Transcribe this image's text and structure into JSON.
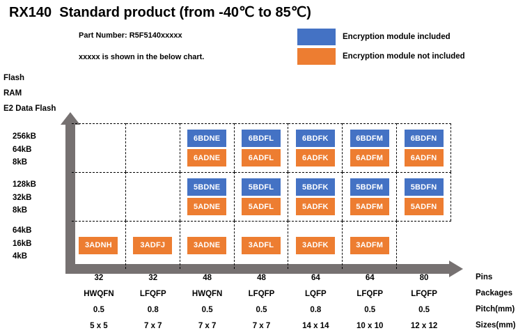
{
  "title": "RX140  Standard product (from -40℃ to 85℃)",
  "header": {
    "part_number": "Part Number: R5F5140xxxxx",
    "note": "xxxxx is shown in the below chart."
  },
  "legend": {
    "included": {
      "label": "Encryption module included",
      "color": "#4472C4"
    },
    "not_included": {
      "label": "Encryption module not included",
      "color": "#ED7D31"
    }
  },
  "colors": {
    "axis": "#767171",
    "grid_line": "#000000"
  },
  "y_axis": {
    "header": {
      "flash": "Flash",
      "ram": "RAM",
      "e2": "E2 Data Flash"
    },
    "groups": [
      {
        "flash": "256kB",
        "ram": "64kB",
        "e2": "8kB"
      },
      {
        "flash": "128kB",
        "ram": "32kB",
        "e2": "8kB"
      },
      {
        "flash": "64kB",
        "ram": "16kB",
        "e2": "4kB"
      }
    ]
  },
  "x_axis": {
    "row_labels": {
      "pins": "Pins",
      "packages": "Packages",
      "pitch": "Pitch(mm)",
      "sizes": "Sizes(mm)"
    },
    "columns": [
      {
        "pins": "32",
        "package": "HWQFN",
        "pitch": "0.5",
        "size": "5 x 5"
      },
      {
        "pins": "32",
        "package": "LFQFP",
        "pitch": "0.8",
        "size": "7 x 7"
      },
      {
        "pins": "48",
        "package": "HWQFN",
        "pitch": "0.5",
        "size": "7 x 7"
      },
      {
        "pins": "48",
        "package": "LFQFP",
        "pitch": "0.5",
        "size": "7 x 7"
      },
      {
        "pins": "64",
        "package": "LQFP",
        "pitch": "0.8",
        "size": "14 x 14"
      },
      {
        "pins": "64",
        "package": "LFQFP",
        "pitch": "0.5",
        "size": "10 x 10"
      },
      {
        "pins": "80",
        "package": "LFQFP",
        "pitch": "0.5",
        "size": "12 x 12"
      }
    ]
  },
  "grid": {
    "rows": [
      [
        null,
        null,
        {
          "included": "6BDNE",
          "not_included": "6ADNE"
        },
        {
          "included": "6BDFL",
          "not_included": "6ADFL"
        },
        {
          "included": "6BDFK",
          "not_included": "6ADFK"
        },
        {
          "included": "6BDFM",
          "not_included": "6ADFM"
        },
        {
          "included": "6BDFN",
          "not_included": "6ADFN"
        }
      ],
      [
        null,
        null,
        {
          "included": "5BDNE",
          "not_included": "5ADNE"
        },
        {
          "included": "5BDFL",
          "not_included": "5ADFL"
        },
        {
          "included": "5BDFK",
          "not_included": "5ADFK"
        },
        {
          "included": "5BDFM",
          "not_included": "5ADFM"
        },
        {
          "included": "5BDFN",
          "not_included": "5ADFN"
        }
      ],
      [
        {
          "not_included": "3ADNH"
        },
        {
          "not_included": "3ADFJ"
        },
        {
          "not_included": "3ADNE"
        },
        {
          "not_included": "3ADFL"
        },
        {
          "not_included": "3ADFK"
        },
        {
          "not_included": "3ADFM"
        },
        null
      ]
    ]
  }
}
